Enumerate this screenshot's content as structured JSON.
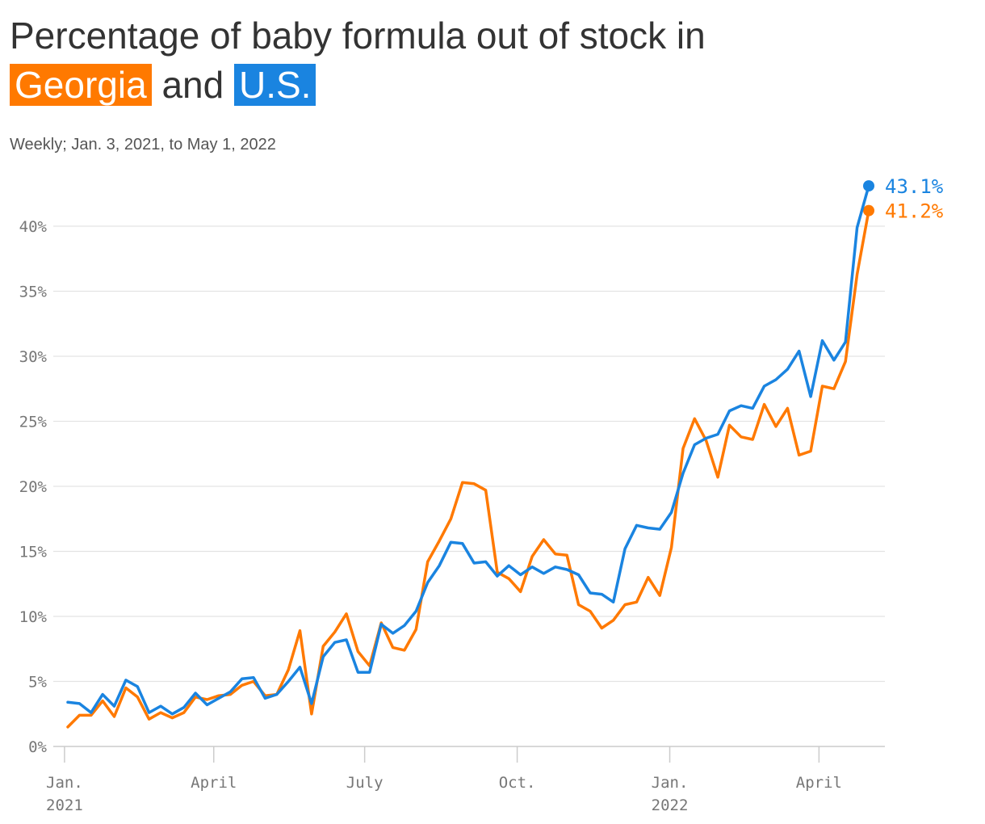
{
  "title": {
    "prefix": "Percentage of baby formula out of stock in",
    "georgia": "Georgia",
    "and": "and",
    "us": "U.S."
  },
  "subtitle": "Weekly; Jan. 3, 2021, to May 1, 2022",
  "colors": {
    "georgia": "#ff7900",
    "us": "#1a84e0",
    "grid": "#e3e3e3",
    "axis": "#cccccc"
  },
  "chart_data": {
    "type": "line",
    "title": "Percentage of baby formula out of stock in Georgia and U.S.",
    "subtitle": "Weekly; Jan. 3, 2021, to May 1, 2022",
    "x_start": "2021-01-03",
    "x_end": "2022-05-01",
    "x_interval": "weekly",
    "ylim": [
      0,
      43.1
    ],
    "yticks": [
      0,
      5,
      10,
      15,
      20,
      25,
      30,
      35,
      40
    ],
    "ytick_labels": [
      "0%",
      "5%",
      "10%",
      "15%",
      "20%",
      "25%",
      "30%",
      "35%",
      "40%"
    ],
    "xticks": [
      {
        "date": "2021-01-01",
        "line1": "Jan.",
        "line2": "2021"
      },
      {
        "date": "2021-04-01",
        "line1": "April",
        "line2": ""
      },
      {
        "date": "2021-07-01",
        "line1": "July",
        "line2": ""
      },
      {
        "date": "2021-10-01",
        "line1": "Oct.",
        "line2": ""
      },
      {
        "date": "2022-01-01",
        "line1": "Jan.",
        "line2": "2022"
      },
      {
        "date": "2022-04-01",
        "line1": "April",
        "line2": ""
      }
    ],
    "grid": true,
    "series": [
      {
        "name": "U.S.",
        "color_key": "us",
        "end_label": "43.1%",
        "values": [
          3.4,
          3.3,
          2.6,
          4.0,
          3.1,
          5.1,
          4.6,
          2.6,
          3.1,
          2.5,
          3.0,
          4.1,
          3.2,
          3.7,
          4.2,
          5.2,
          5.3,
          3.7,
          4.0,
          5.0,
          6.1,
          3.3,
          6.9,
          8.0,
          8.2,
          5.7,
          5.7,
          9.4,
          8.7,
          9.3,
          10.4,
          12.6,
          13.9,
          15.7,
          15.6,
          14.1,
          14.2,
          13.1,
          13.9,
          13.2,
          13.8,
          13.3,
          13.8,
          13.6,
          13.2,
          11.8,
          11.7,
          11.1,
          15.2,
          17.0,
          16.8,
          16.7,
          18.0,
          21.0,
          23.2,
          23.7,
          24.0,
          25.8,
          26.2,
          26.0,
          27.7,
          28.2,
          29.0,
          30.4,
          26.9,
          31.2,
          29.7,
          31.1,
          39.9,
          43.1
        ]
      },
      {
        "name": "Georgia",
        "color_key": "georgia",
        "end_label": "41.2%",
        "values": [
          1.5,
          2.4,
          2.4,
          3.5,
          2.3,
          4.5,
          3.8,
          2.1,
          2.6,
          2.2,
          2.6,
          3.8,
          3.6,
          3.9,
          4.0,
          4.7,
          5.0,
          3.9,
          4.0,
          5.9,
          8.9,
          2.5,
          7.7,
          8.8,
          10.2,
          7.3,
          6.2,
          9.5,
          7.6,
          7.4,
          9.0,
          14.2,
          15.8,
          17.5,
          20.3,
          20.2,
          19.7,
          13.4,
          12.9,
          11.9,
          14.6,
          15.9,
          14.8,
          14.7,
          10.9,
          10.4,
          9.1,
          9.7,
          10.9,
          11.1,
          13.0,
          11.6,
          15.3,
          22.9,
          25.2,
          23.5,
          20.7,
          24.7,
          23.8,
          23.6,
          26.3,
          24.6,
          26.0,
          22.4,
          22.7,
          27.7,
          27.5,
          29.6,
          36.3,
          41.2
        ]
      }
    ]
  }
}
